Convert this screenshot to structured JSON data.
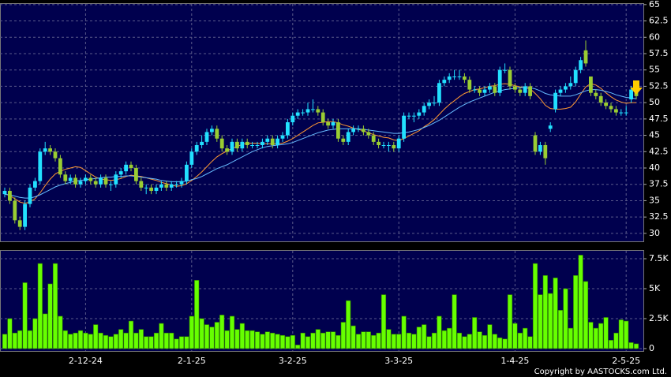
{
  "chart_data": {
    "type": "candlestick",
    "categories": [
      null,
      null,
      null,
      null,
      null,
      null,
      null,
      null,
      null,
      null,
      null,
      null,
      null,
      null,
      null,
      null,
      "2-12-24",
      null,
      null,
      null,
      null,
      null,
      null,
      null,
      null,
      null,
      null,
      null,
      null,
      null,
      null,
      null,
      null,
      null,
      null,
      null,
      null,
      "2-1-25",
      null,
      null,
      null,
      null,
      null,
      null,
      null,
      null,
      null,
      null,
      null,
      null,
      null,
      null,
      null,
      null,
      null,
      null,
      null,
      "3-2-25",
      null,
      null,
      null,
      null,
      null,
      null,
      null,
      null,
      null,
      null,
      null,
      null,
      null,
      null,
      null,
      null,
      null,
      null,
      null,
      null,
      "3-3-25",
      null,
      null,
      null,
      null,
      null,
      null,
      null,
      null,
      null,
      null,
      null,
      null,
      null,
      null,
      null,
      null,
      null,
      null,
      null,
      null,
      null,
      null,
      "1-4-25",
      null,
      null,
      null,
      null,
      null,
      null,
      null,
      null,
      null,
      null,
      null,
      null,
      null,
      null,
      null,
      null,
      null,
      null,
      null,
      null,
      null,
      "2-5-25",
      null,
      null
    ],
    "ohlc": [
      [
        36,
        37,
        35.5,
        36.5
      ],
      [
        36.5,
        37,
        34.5,
        35
      ],
      [
        35,
        35.5,
        31.5,
        32
      ],
      [
        32,
        32.5,
        30.5,
        31
      ],
      [
        31,
        35,
        30.5,
        34.5
      ],
      [
        34.5,
        37.5,
        34,
        37
      ],
      [
        37,
        38.5,
        36.5,
        38
      ],
      [
        38,
        43,
        37.5,
        42.5
      ],
      [
        42.5,
        44,
        42,
        43
      ],
      [
        43,
        43.5,
        42,
        42.5
      ],
      [
        42.5,
        43,
        41,
        41.5
      ],
      [
        41.5,
        42,
        38.5,
        39
      ],
      [
        39,
        39.5,
        37.5,
        38
      ],
      [
        38,
        39,
        37.5,
        38.5
      ],
      [
        38.5,
        39,
        37,
        37.5
      ],
      [
        37.5,
        38.5,
        37,
        38
      ],
      [
        38,
        39,
        37.5,
        38.5
      ],
      [
        38.5,
        39,
        37.5,
        38
      ],
      [
        38,
        38.5,
        37,
        37.5
      ],
      [
        37.5,
        39,
        37,
        38.5
      ],
      [
        38.5,
        39,
        37,
        37.5
      ],
      [
        37.5,
        38,
        36.5,
        37.5
      ],
      [
        37.5,
        39.5,
        37,
        39
      ],
      [
        39,
        40,
        38.5,
        39.5
      ],
      [
        39.5,
        41,
        39,
        40.5
      ],
      [
        40.5,
        41,
        39.5,
        40
      ],
      [
        40,
        40.5,
        37.5,
        38
      ],
      [
        38,
        38.5,
        36.5,
        37
      ],
      [
        37,
        37.5,
        36,
        37
      ],
      [
        37,
        37.5,
        36,
        36.5
      ],
      [
        36.5,
        37.5,
        36,
        37
      ],
      [
        37,
        38,
        36.5,
        37.5
      ],
      [
        37.5,
        38,
        36.5,
        37
      ],
      [
        37,
        38,
        36.5,
        37.5
      ],
      [
        37.5,
        38,
        37,
        37.5
      ],
      [
        37.5,
        38.5,
        37,
        38
      ],
      [
        38,
        41,
        37.5,
        40.5
      ],
      [
        40.5,
        43,
        40,
        42.5
      ],
      [
        42.5,
        44,
        42,
        43.5
      ],
      [
        43.5,
        45,
        43,
        44
      ],
      [
        44,
        46,
        43.5,
        45.5
      ],
      [
        45.5,
        46.5,
        45,
        46
      ],
      [
        46,
        46.5,
        44,
        44.5
      ],
      [
        44.5,
        45,
        42.5,
        43
      ],
      [
        43,
        43.5,
        42,
        42.5
      ],
      [
        42.5,
        44.5,
        42,
        44
      ],
      [
        44,
        44.5,
        42.5,
        43
      ],
      [
        43,
        44.5,
        42.5,
        44
      ],
      [
        44,
        44.5,
        43,
        43.5
      ],
      [
        43.5,
        44,
        43,
        43.5
      ],
      [
        43.5,
        44,
        43,
        43.5
      ],
      [
        43.5,
        44.5,
        43,
        44
      ],
      [
        44,
        45,
        43.5,
        44.5
      ],
      [
        44.5,
        45,
        43,
        43.5
      ],
      [
        43.5,
        45,
        43,
        44.5
      ],
      [
        44.5,
        45.5,
        44,
        45
      ],
      [
        45,
        47.5,
        44.5,
        47
      ],
      [
        47,
        48.5,
        46.5,
        48
      ],
      [
        48,
        49,
        47.5,
        48.5
      ],
      [
        48.5,
        49,
        48,
        48.5
      ],
      [
        48.5,
        50,
        48,
        49
      ],
      [
        49,
        50.5,
        48.5,
        49
      ],
      [
        49,
        49.5,
        48,
        48.5
      ],
      [
        48.5,
        49,
        46.5,
        47
      ],
      [
        47,
        47.5,
        46,
        46.5
      ],
      [
        46.5,
        47.5,
        46,
        47
      ],
      [
        47,
        47.5,
        44,
        44.5
      ],
      [
        44.5,
        45,
        43.5,
        44
      ],
      [
        44,
        46,
        43.5,
        45.5
      ],
      [
        45.5,
        46.5,
        45,
        46
      ],
      [
        46,
        46.5,
        45.5,
        46
      ],
      [
        46,
        46.5,
        45,
        45.5
      ],
      [
        45.5,
        46,
        44.5,
        45
      ],
      [
        45,
        45.5,
        43.5,
        44
      ],
      [
        44,
        44.5,
        43,
        43.5
      ],
      [
        43.5,
        44,
        43,
        43.5
      ],
      [
        43.5,
        44,
        42.5,
        43.5
      ],
      [
        43.5,
        44,
        42.5,
        43
      ],
      [
        43,
        45,
        42.5,
        44.5
      ],
      [
        44.5,
        48.5,
        44,
        48
      ],
      [
        48,
        48.5,
        47.5,
        48
      ],
      [
        48,
        48.5,
        47,
        48
      ],
      [
        48,
        49,
        47.5,
        48.5
      ],
      [
        48.5,
        50,
        48,
        49.5
      ],
      [
        49.5,
        50.5,
        49,
        50
      ],
      [
        50,
        51,
        49.5,
        50
      ],
      [
        50,
        53.5,
        49.5,
        53
      ],
      [
        53,
        54,
        52.5,
        53.5
      ],
      [
        53.5,
        54.5,
        53,
        54
      ],
      [
        54,
        55,
        53.5,
        54
      ],
      [
        54,
        55,
        53.5,
        54
      ],
      [
        54,
        54.5,
        53,
        53.5
      ],
      [
        53.5,
        54,
        51.5,
        52
      ],
      [
        52,
        52.5,
        51.5,
        52
      ],
      [
        52,
        52.5,
        51,
        51.5
      ],
      [
        51.5,
        52.5,
        51,
        52
      ],
      [
        52,
        53,
        51.5,
        52.5
      ],
      [
        52.5,
        53,
        51,
        51.5
      ],
      [
        51.5,
        55.5,
        51,
        55
      ],
      [
        55,
        56,
        54.5,
        55
      ],
      [
        55,
        55.5,
        52,
        52.5
      ],
      [
        52.5,
        53,
        51.5,
        52
      ],
      [
        52,
        52.5,
        51,
        51.5
      ],
      [
        51.5,
        53,
        51,
        52.5
      ],
      [
        52.5,
        53,
        50.5,
        51
      ],
      [
        45,
        45.5,
        42,
        42.5
      ],
      [
        42.5,
        44,
        42,
        43.5
      ],
      [
        43.5,
        44,
        40.5,
        41.5
      ],
      [
        46,
        47,
        45.5,
        46.5
      ],
      [
        49,
        52,
        48.5,
        51.5
      ],
      [
        51.5,
        52.5,
        51,
        52
      ],
      [
        52,
        53,
        51.5,
        52.5
      ],
      [
        52.5,
        54,
        52,
        53
      ],
      [
        53,
        55.5,
        52.5,
        55
      ],
      [
        55,
        57,
        54.5,
        56.5
      ],
      [
        58,
        59.5,
        55.5,
        56
      ],
      [
        54,
        54,
        51,
        51.5
      ],
      [
        51.5,
        52,
        50.5,
        51
      ],
      [
        51,
        51.5,
        49.5,
        50
      ],
      [
        50,
        50.5,
        49,
        49.5
      ],
      [
        49.5,
        50,
        48.5,
        49
      ],
      [
        49,
        49.5,
        48,
        48.5
      ],
      [
        48.5,
        49,
        48,
        48.5
      ],
      [
        48.5,
        49.5,
        48,
        48.5
      ],
      [
        50.5,
        52.5,
        50,
        52
      ],
      [
        52,
        52.5,
        50.5,
        51
      ]
    ],
    "up_color": "#22e0ff",
    "down_color": "#9acd32",
    "series": [
      {
        "color": "#ff9933",
        "values": [
          36,
          35.8,
          35.3,
          34.8,
          34.6,
          34.8,
          35.3,
          36.2,
          37.3,
          38.3,
          39.1,
          39.5,
          39.8,
          40,
          40.2,
          40.1,
          39.6,
          39.1,
          38.6,
          38.3,
          38.2,
          38.1,
          38.2,
          38.4,
          38.7,
          38.9,
          38.8,
          38.7,
          38.5,
          38.3,
          38.1,
          37.8,
          37.6,
          37.4,
          37.2,
          37.3,
          37.6,
          38.1,
          38.7,
          39.4,
          40.2,
          41,
          41.7,
          42.2,
          42.6,
          43,
          43.3,
          43.6,
          43.8,
          43.8,
          43.8,
          43.7,
          43.7,
          43.7,
          43.7,
          43.8,
          44.1,
          44.5,
          45,
          45.5,
          46,
          46.5,
          46.9,
          47,
          47.1,
          47.1,
          46.9,
          46.6,
          46.4,
          46.1,
          45.9,
          45.7,
          45.4,
          45.1,
          44.9,
          44.7,
          44.6,
          44.3,
          44.2,
          44.5,
          44.9,
          45.3,
          45.7,
          46.3,
          46.8,
          47.4,
          48.2,
          49,
          49.7,
          50.3,
          50.9,
          51.4,
          51.7,
          52,
          52.1,
          52.3,
          52.5,
          52.6,
          52.8,
          52.9,
          52.8,
          52.6,
          52.4,
          52.3,
          52.1,
          51.4,
          50.6,
          49.6,
          49.1,
          49,
          49,
          49.1,
          49.3,
          50.1,
          51.3,
          52.4,
          52.9,
          52.7,
          52.2,
          51.5,
          50.9,
          50.4,
          50.1,
          49.9,
          50,
          50
        ]
      },
      {
        "color": "#66bbff",
        "values": [
          36,
          35.9,
          35.7,
          35.5,
          35.4,
          35.4,
          35.6,
          35.9,
          36.3,
          36.7,
          37.1,
          37.4,
          37.6,
          37.8,
          38,
          38.1,
          38.2,
          38.3,
          38.4,
          38.5,
          38.6,
          38.6,
          38.7,
          38.7,
          38.8,
          38.8,
          38.7,
          38.6,
          38.5,
          38.4,
          38.3,
          38.1,
          38,
          37.9,
          37.9,
          37.9,
          38,
          38.2,
          38.4,
          38.7,
          39.1,
          39.5,
          39.9,
          40.2,
          40.5,
          40.9,
          41.3,
          41.7,
          42.1,
          42.5,
          42.8,
          43.1,
          43.3,
          43.4,
          43.5,
          43.6,
          43.7,
          43.9,
          44.2,
          44.5,
          44.8,
          45.1,
          45.4,
          45.6,
          45.8,
          45.9,
          46,
          46,
          46,
          46,
          46,
          45.9,
          45.8,
          45.7,
          45.6,
          45.5,
          45.4,
          45.3,
          45.3,
          45.4,
          45.5,
          45.7,
          45.9,
          46.2,
          46.5,
          46.9,
          47.3,
          47.8,
          48.3,
          48.8,
          49.3,
          49.7,
          50.1,
          50.4,
          50.7,
          51,
          51.3,
          51.6,
          51.8,
          52,
          52.1,
          52.2,
          52.3,
          52.3,
          52.3,
          52.1,
          51.8,
          51.4,
          51.2,
          51.1,
          51,
          51,
          51,
          51.2,
          51.5,
          51.8,
          52,
          52,
          51.9,
          51.7,
          51.5,
          51.2,
          51,
          50.8,
          50.7,
          50.6
        ]
      }
    ],
    "ylim": [
      28.9,
      65.1
    ],
    "yticks": [
      30,
      32.5,
      35,
      37.5,
      40,
      42.5,
      45,
      47.5,
      50,
      52.5,
      55,
      57.5,
      60,
      62.5,
      65
    ],
    "volume": {
      "color": "#66ff00",
      "values": [
        1200,
        2500,
        1300,
        1500,
        5500,
        1500,
        2500,
        7100,
        2900,
        5400,
        7100,
        2700,
        1500,
        1200,
        1300,
        1500,
        1300,
        1200,
        2000,
        1300,
        1100,
        1000,
        1200,
        1600,
        1300,
        2300,
        1300,
        1600,
        1000,
        1000,
        1300,
        2100,
        1300,
        1300,
        800,
        1000,
        1000,
        2700,
        5700,
        2500,
        2000,
        1800,
        2200,
        2800,
        1500,
        2700,
        1600,
        2100,
        1500,
        1500,
        1400,
        1200,
        1400,
        1300,
        1200,
        1100,
        1000,
        1100,
        300,
        1300,
        1000,
        1300,
        1600,
        1300,
        1400,
        1400,
        1100,
        2200,
        4000,
        1900,
        1200,
        1400,
        1400,
        1100,
        1300,
        4500,
        1600,
        1200,
        1200,
        2700,
        1300,
        1200,
        1800,
        2000,
        1000,
        1300,
        2700,
        1500,
        1700,
        4500,
        1300,
        1000,
        1200,
        2600,
        1400,
        1100,
        2000,
        1200,
        900,
        800,
        4500,
        2100,
        1300,
        1700,
        1000,
        7100,
        4500,
        6100,
        4600,
        5900,
        3200,
        5000,
        1700,
        6100,
        7800,
        5600,
        2200,
        1700,
        2100,
        2600,
        700,
        1300,
        2400,
        2300,
        500,
        400
      ],
      "ylim": [
        -200,
        8160
      ],
      "yticks": [
        0,
        {
          "value": 2500,
          "label": "2.5K"
        },
        {
          "value": 5000,
          "label": "5K"
        },
        {
          "value": 7500,
          "label": "7.5K"
        }
      ]
    },
    "footer": "Copyright by AASTOCKS.com Ltd.",
    "grid": true
  }
}
